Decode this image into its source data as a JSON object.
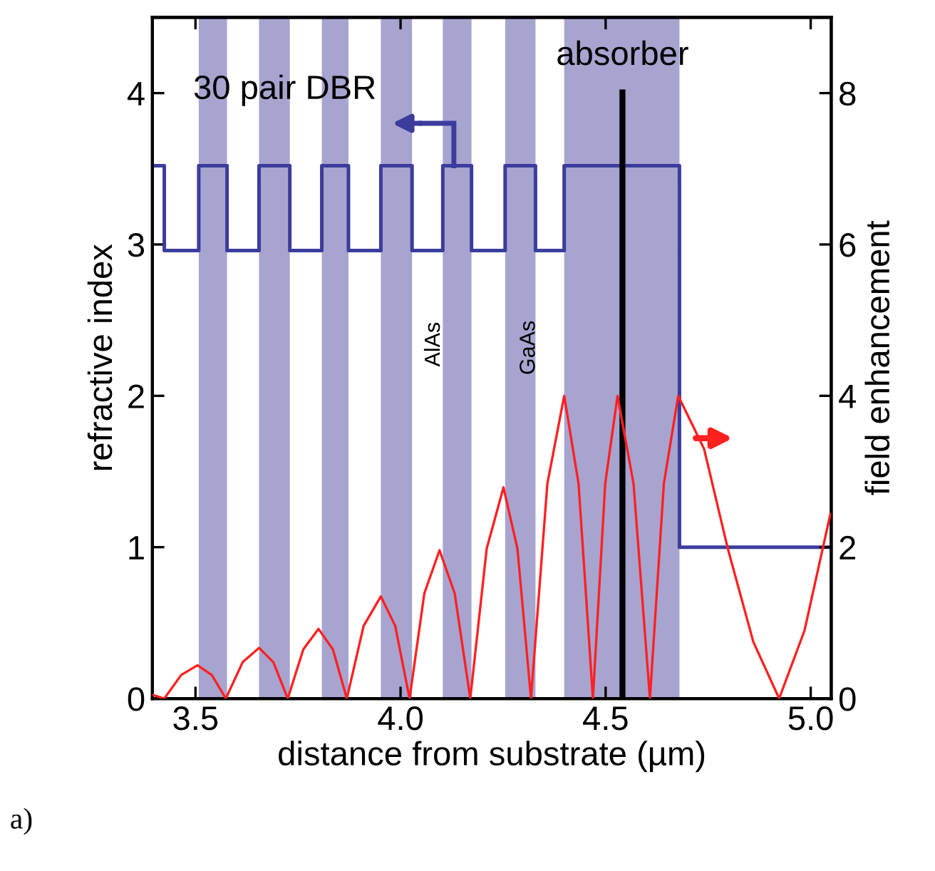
{
  "chart_data": {
    "type": "line",
    "xlabel": "distance from substrate (µm)",
    "ylabel": "refractive index",
    "y2label": "field enhancement",
    "xlim": [
      3.395,
      5.05
    ],
    "xticks": [
      3.5,
      {
        "value": 4.0,
        "label": "4.0"
      },
      4.5,
      {
        "value": 5.0,
        "label": "5.0"
      }
    ],
    "ylim": [
      0,
      4.5
    ],
    "yticks": [
      0,
      1,
      2,
      3,
      4
    ],
    "y2lim": [
      0,
      9
    ],
    "y2ticks": [
      0,
      2,
      4,
      6,
      8
    ],
    "grid": false,
    "series": [
      {
        "type": "step",
        "color": "#3c3c9c",
        "x": [
          3.395,
          3.424,
          3.508,
          3.577,
          3.655,
          3.73,
          3.808,
          3.873,
          3.952,
          4.028,
          4.103,
          4.173,
          4.255,
          4.329,
          4.399,
          4.68,
          5.05
        ],
        "values": [
          3.52,
          2.96,
          3.52,
          2.96,
          3.52,
          2.96,
          3.52,
          2.96,
          3.52,
          2.96,
          3.52,
          2.96,
          3.52,
          2.96,
          3.52,
          1.0,
          1.0
        ]
      },
      {
        "axis": "y2",
        "color": "#ff2020",
        "x": [
          3.395,
          3.424,
          3.465,
          3.505,
          3.54,
          3.574,
          3.615,
          3.655,
          3.69,
          3.725,
          3.763,
          3.8,
          3.835,
          3.869,
          3.91,
          3.952,
          3.987,
          4.022,
          4.058,
          4.095,
          4.132,
          4.17,
          4.21,
          4.251,
          4.285,
          4.318,
          4.358,
          4.399,
          4.434,
          4.469,
          4.499,
          4.529,
          4.568,
          4.608,
          4.642,
          4.677,
          4.74,
          4.797,
          4.86,
          4.923,
          4.985,
          5.048
        ],
        "values": [
          0.05,
          0,
          0.31,
          0.44,
          0.31,
          0,
          0.48,
          0.67,
          0.48,
          0,
          0.65,
          0.92,
          0.65,
          0,
          0.96,
          1.35,
          0.96,
          0,
          1.39,
          1.96,
          1.39,
          0,
          1.98,
          2.79,
          1.98,
          0,
          2.84,
          4.0,
          2.84,
          0,
          2.84,
          4.0,
          2.84,
          0,
          2.84,
          4.0,
          3.3,
          2.0,
          0.75,
          0,
          0.9,
          2.44
        ]
      }
    ],
    "bands": [
      {
        "axis": "x",
        "from": 3.508,
        "to": 3.577,
        "color": "#a8a4d0"
      },
      {
        "axis": "x",
        "from": 3.655,
        "to": 3.73,
        "color": "#a8a4d0"
      },
      {
        "axis": "x",
        "from": 3.808,
        "to": 3.873,
        "color": "#a8a4d0"
      },
      {
        "axis": "x",
        "from": 3.952,
        "to": 4.028,
        "color": "#a8a4d0"
      },
      {
        "axis": "x",
        "from": 4.103,
        "to": 4.173,
        "color": "#a8a4d0"
      },
      {
        "axis": "x",
        "from": 4.255,
        "to": 4.329,
        "color": "#a8a4d0"
      },
      {
        "axis": "x",
        "from": 4.399,
        "to": 4.68,
        "color": "#a8a4d0"
      }
    ],
    "ref_lines": [
      {
        "axis": "x",
        "value": 4.541,
        "label": "absorber",
        "color": "#000000"
      }
    ],
    "annotations": [
      "30 pair DBR",
      "AlAs",
      "GaAs",
      "a)"
    ]
  }
}
